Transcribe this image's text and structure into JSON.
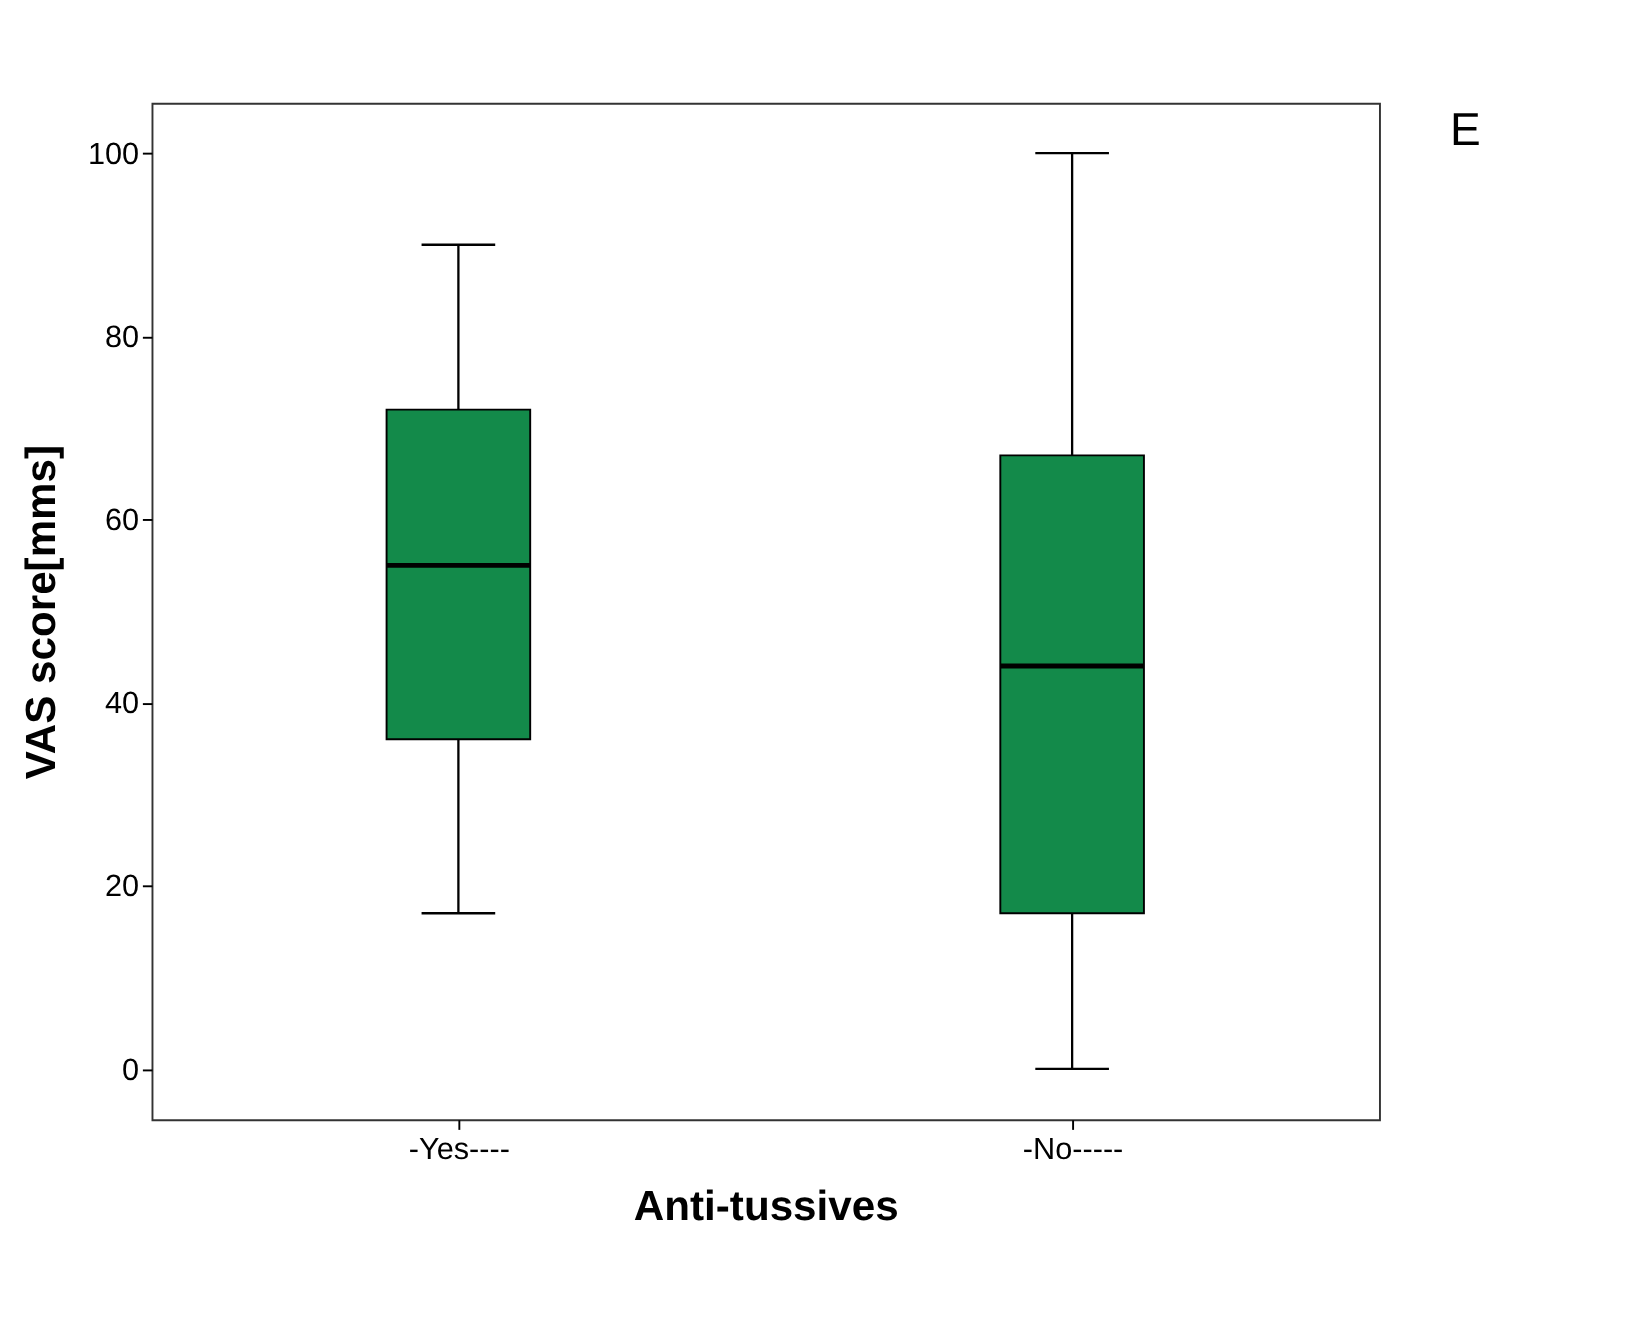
{
  "chart_data": {
    "type": "box",
    "xlabel": "Anti-tussives",
    "ylabel": "VAS score[mms]",
    "categories": [
      "-Yes----",
      "-No-----"
    ],
    "boxes": [
      {
        "low": 17,
        "q1": 36,
        "median": 55,
        "q3": 72,
        "high": 90
      },
      {
        "low": 0,
        "q1": 17,
        "median": 44,
        "q3": 67,
        "high": 100
      }
    ],
    "color": "#138a4a",
    "ylim": [
      -5.5,
      105.5
    ],
    "yticks": [
      0,
      20,
      40,
      60,
      80,
      100
    ],
    "grid": false,
    "annotations": [
      "E"
    ]
  }
}
